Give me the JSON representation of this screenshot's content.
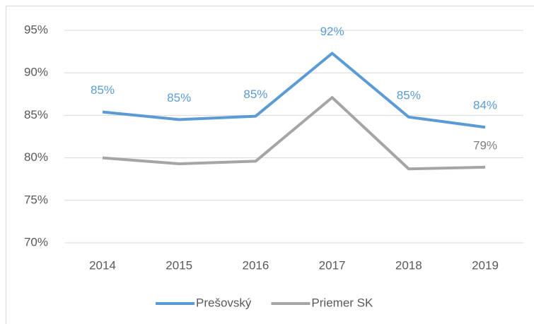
{
  "chart_data": {
    "type": "line",
    "categories": [
      "2014",
      "2015",
      "2016",
      "2017",
      "2018",
      "2019"
    ],
    "series": [
      {
        "name": "Prešovský",
        "color": "#5b9bd5",
        "values": [
          85.4,
          84.5,
          84.9,
          92.3,
          84.8,
          83.6
        ],
        "value_labels": [
          "85%",
          "85%",
          "85%",
          "92%",
          "85%",
          "84%"
        ]
      },
      {
        "name": "Priemer SK",
        "color": "#a5a5a5",
        "values": [
          80.0,
          79.3,
          79.6,
          87.1,
          78.7,
          78.9
        ],
        "value_labels": [
          null,
          null,
          null,
          null,
          null,
          "79%"
        ]
      }
    ],
    "ylim": [
      70,
      95
    ],
    "yticks": [
      {
        "value": 70,
        "label": "70%"
      },
      {
        "value": 75,
        "label": "75%"
      },
      {
        "value": 80,
        "label": "80%"
      },
      {
        "value": 85,
        "label": "85%"
      },
      {
        "value": 90,
        "label": "90%"
      },
      {
        "value": 95,
        "label": "95%"
      }
    ],
    "grid": true,
    "legend": "bottom"
  }
}
